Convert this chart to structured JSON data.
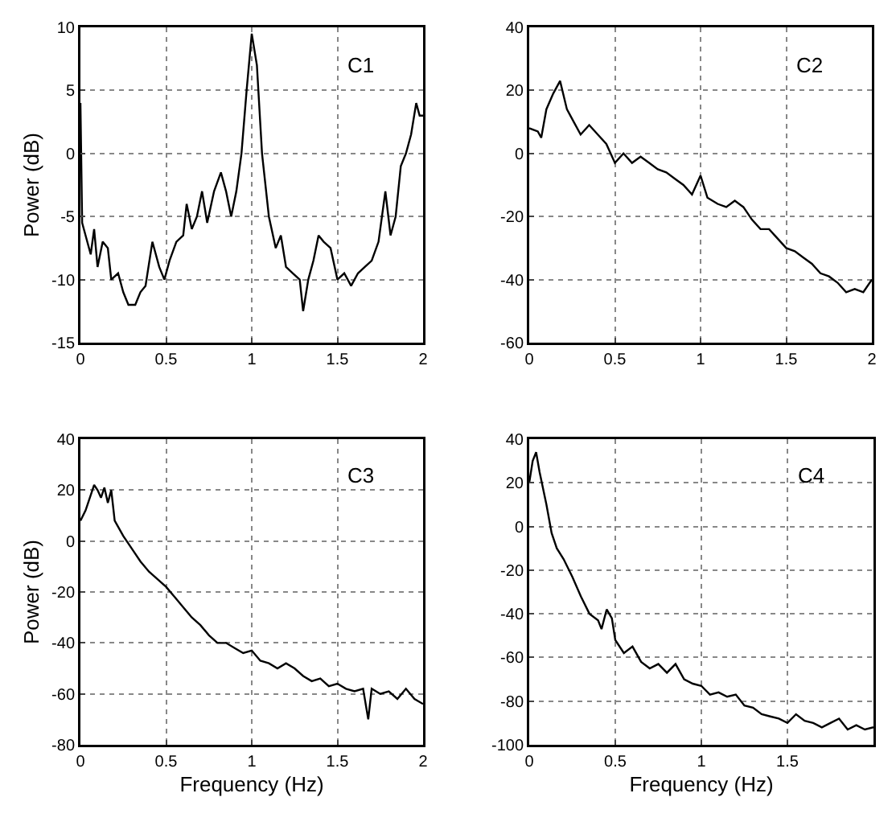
{
  "chart_data": [
    {
      "type": "line",
      "ylabel": "Power (dB)",
      "annotations": [
        "C1"
      ],
      "xlim": [
        0,
        2
      ],
      "xticks": [
        0,
        0.5,
        1,
        1.5,
        2
      ],
      "ylim": [
        -15,
        10
      ],
      "yticks": [
        -15,
        -10,
        -5,
        0,
        5,
        10
      ],
      "grid": true,
      "series": [
        {
          "color": "#000000",
          "x": [
            0,
            0.01,
            0.03,
            0.06,
            0.08,
            0.1,
            0.13,
            0.16,
            0.18,
            0.22,
            0.25,
            0.28,
            0.32,
            0.35,
            0.38,
            0.42,
            0.46,
            0.49,
            0.52,
            0.56,
            0.6,
            0.62,
            0.65,
            0.68,
            0.71,
            0.74,
            0.78,
            0.82,
            0.85,
            0.88,
            0.91,
            0.94,
            0.97,
            1.0,
            1.03,
            1.06,
            1.1,
            1.14,
            1.17,
            1.2,
            1.24,
            1.28,
            1.3,
            1.33,
            1.36,
            1.39,
            1.42,
            1.46,
            1.5,
            1.54,
            1.58,
            1.62,
            1.66,
            1.7,
            1.74,
            1.78,
            1.81,
            1.84,
            1.87,
            1.9,
            1.93,
            1.96,
            1.98,
            2.0
          ],
          "values": [
            4,
            -5.5,
            -6.5,
            -8,
            -6,
            -9,
            -7,
            -7.5,
            -10,
            -9.5,
            -11,
            -12,
            -12,
            -11,
            -10.5,
            -7,
            -9,
            -10,
            -8.5,
            -7,
            -6.5,
            -4,
            -6,
            -5,
            -3,
            -5.5,
            -3,
            -1.5,
            -3,
            -5,
            -3,
            0,
            5,
            9.5,
            7,
            0,
            -5,
            -7.5,
            -6.5,
            -9,
            -9.5,
            -10,
            -12.5,
            -10,
            -8.5,
            -6.5,
            -7,
            -7.5,
            -10,
            -9.5,
            -10.5,
            -9.5,
            -9,
            -8.5,
            -7,
            -3,
            -6.5,
            -5,
            -1,
            0,
            1.5,
            4,
            3,
            3
          ]
        }
      ]
    },
    {
      "type": "line",
      "annotations": [
        "C2"
      ],
      "xlim": [
        0,
        2
      ],
      "xticks": [
        0,
        0.5,
        1,
        1.5,
        2
      ],
      "ylim": [
        -60,
        40
      ],
      "yticks": [
        -60,
        -40,
        -20,
        0,
        20,
        40
      ],
      "grid": true,
      "series": [
        {
          "color": "#000000",
          "x": [
            0,
            0.05,
            0.07,
            0.1,
            0.14,
            0.18,
            0.22,
            0.26,
            0.3,
            0.35,
            0.4,
            0.45,
            0.5,
            0.55,
            0.6,
            0.65,
            0.7,
            0.75,
            0.8,
            0.85,
            0.9,
            0.95,
            1.0,
            1.04,
            1.1,
            1.15,
            1.2,
            1.25,
            1.3,
            1.35,
            1.4,
            1.45,
            1.5,
            1.55,
            1.6,
            1.65,
            1.7,
            1.75,
            1.8,
            1.85,
            1.9,
            1.95,
            2.0
          ],
          "values": [
            8,
            7,
            5,
            14,
            19,
            23,
            14,
            10,
            6,
            9,
            6,
            3,
            -3,
            0,
            -3,
            -1,
            -3,
            -5,
            -6,
            -8,
            -10,
            -13,
            -7,
            -14,
            -16,
            -17,
            -15,
            -17,
            -21,
            -24,
            -24,
            -27,
            -30,
            -31,
            -33,
            -35,
            -38,
            -39,
            -41,
            -44,
            -43,
            -44,
            -40
          ]
        }
      ]
    },
    {
      "type": "line",
      "xlabel": "Frequency (Hz)",
      "ylabel": "Power (dB)",
      "annotations": [
        "C3"
      ],
      "xlim": [
        0,
        2
      ],
      "xticks": [
        0,
        0.5,
        1,
        1.5,
        2
      ],
      "ylim": [
        -80,
        40
      ],
      "yticks": [
        -80,
        -60,
        -40,
        -20,
        0,
        20,
        40
      ],
      "grid": true,
      "series": [
        {
          "color": "#000000",
          "x": [
            0,
            0.03,
            0.06,
            0.08,
            0.1,
            0.12,
            0.14,
            0.16,
            0.18,
            0.2,
            0.25,
            0.3,
            0.35,
            0.4,
            0.45,
            0.5,
            0.55,
            0.6,
            0.65,
            0.7,
            0.75,
            0.8,
            0.85,
            0.9,
            0.95,
            1.0,
            1.05,
            1.1,
            1.15,
            1.2,
            1.25,
            1.3,
            1.35,
            1.4,
            1.45,
            1.5,
            1.55,
            1.6,
            1.65,
            1.68,
            1.7,
            1.75,
            1.8,
            1.85,
            1.9,
            1.95,
            2.0
          ],
          "values": [
            8,
            12,
            18,
            22,
            20,
            17,
            21,
            15,
            20,
            8,
            2,
            -3,
            -8,
            -12,
            -15,
            -18,
            -22,
            -26,
            -30,
            -33,
            -37,
            -40,
            -40,
            -42,
            -44,
            -43,
            -47,
            -48,
            -50,
            -48,
            -50,
            -53,
            -55,
            -54,
            -57,
            -56,
            -58,
            -59,
            -58,
            -70,
            -58,
            -60,
            -59,
            -62,
            -58,
            -62,
            -64
          ]
        }
      ]
    },
    {
      "type": "line",
      "xlabel": "Frequency (Hz)",
      "annotations": [
        "C4"
      ],
      "xlim": [
        0,
        2
      ],
      "xticks": [
        0,
        0.5,
        1,
        1.5
      ],
      "ylim": [
        -100,
        40
      ],
      "yticks": [
        -100,
        -80,
        -60,
        -40,
        -20,
        0,
        20,
        40
      ],
      "grid": true,
      "series": [
        {
          "color": "#000000",
          "x": [
            0,
            0.02,
            0.04,
            0.06,
            0.1,
            0.13,
            0.16,
            0.2,
            0.25,
            0.3,
            0.35,
            0.4,
            0.42,
            0.45,
            0.48,
            0.5,
            0.55,
            0.6,
            0.65,
            0.7,
            0.75,
            0.8,
            0.85,
            0.9,
            0.95,
            1.0,
            1.05,
            1.1,
            1.15,
            1.2,
            1.25,
            1.3,
            1.35,
            1.4,
            1.45,
            1.5,
            1.55,
            1.6,
            1.65,
            1.7,
            1.75,
            1.8,
            1.85,
            1.9,
            1.95,
            2.0
          ],
          "values": [
            20,
            30,
            34,
            25,
            10,
            -3,
            -10,
            -15,
            -23,
            -32,
            -40,
            -43,
            -47,
            -38,
            -42,
            -52,
            -58,
            -55,
            -62,
            -65,
            -63,
            -67,
            -63,
            -70,
            -72,
            -73,
            -77,
            -76,
            -78,
            -77,
            -82,
            -83,
            -86,
            -87,
            -88,
            -90,
            -86,
            -89,
            -90,
            -92,
            -90,
            -88,
            -93,
            -91,
            -93,
            -92
          ]
        }
      ]
    }
  ]
}
